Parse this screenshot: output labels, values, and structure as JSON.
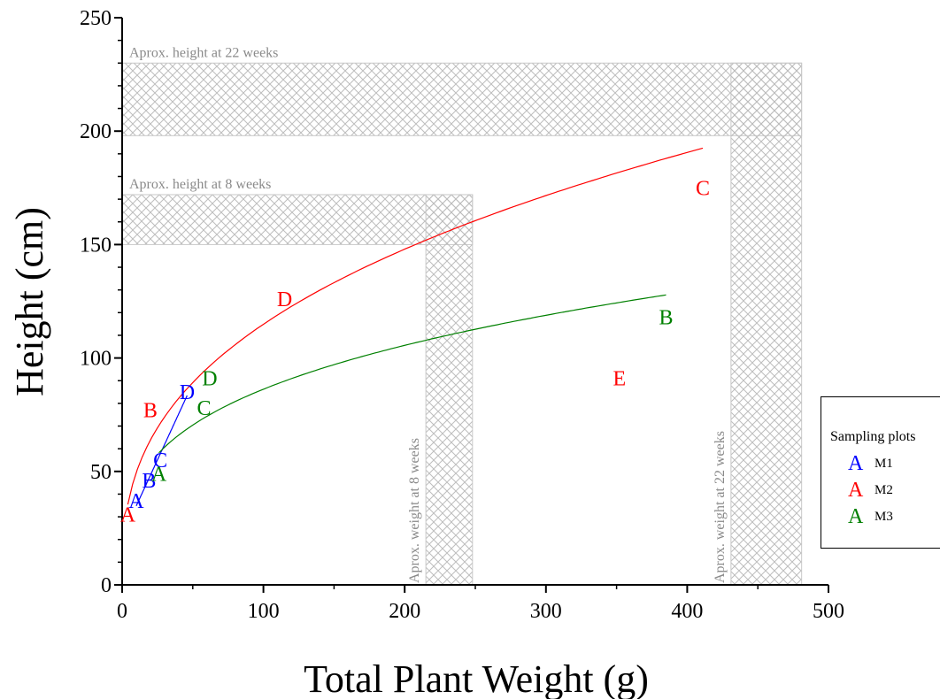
{
  "chart_data": {
    "type": "scatter",
    "xlabel": "Total Plant Weight (g)",
    "ylabel": "Height (cm)",
    "xlim": [
      0,
      500
    ],
    "ylim": [
      0,
      250
    ],
    "x_ticks": [
      0,
      100,
      200,
      300,
      400,
      500
    ],
    "y_ticks": [
      0,
      50,
      100,
      150,
      200,
      250
    ],
    "grid": false,
    "legend": {
      "title": "Sampling plots",
      "placement": "right"
    },
    "series": [
      {
        "name": "M1",
        "color": "#0000ff",
        "points": [
          {
            "label": "A",
            "x": 10,
            "y": 37
          },
          {
            "label": "B",
            "x": 19,
            "y": 46
          },
          {
            "label": "C",
            "x": 27,
            "y": 55
          },
          {
            "label": "D",
            "x": 46,
            "y": 85
          }
        ],
        "fit": "linear"
      },
      {
        "name": "M2",
        "color": "#ff0000",
        "points": [
          {
            "label": "A",
            "x": 4,
            "y": 31
          },
          {
            "label": "B",
            "x": 20,
            "y": 77
          },
          {
            "label": "D",
            "x": 115,
            "y": 126
          },
          {
            "label": "C",
            "x": 411,
            "y": 175
          },
          {
            "label": "E",
            "x": 352,
            "y": 91
          }
        ],
        "fit": "power"
      },
      {
        "name": "M3",
        "color": "#008000",
        "points": [
          {
            "label": "A",
            "x": 26,
            "y": 49
          },
          {
            "label": "C",
            "x": 58,
            "y": 78
          },
          {
            "label": "D",
            "x": 62,
            "y": 91
          },
          {
            "label": "B",
            "x": 385,
            "y": 118
          }
        ],
        "fit": "power"
      }
    ],
    "bands": [
      {
        "label": "Aprox. height at 22 weeks",
        "orientation": "horizontal",
        "x_range": [
          0,
          481
        ],
        "y_range": [
          198,
          230
        ]
      },
      {
        "label": "Aprox. height at 8 weeks",
        "orientation": "horizontal",
        "x_range": [
          0,
          248
        ],
        "y_range": [
          150,
          172
        ]
      },
      {
        "label": "Aprox. weight at 8 weeks",
        "orientation": "vertical",
        "x_range": [
          215,
          248
        ],
        "y_range": [
          0,
          172
        ]
      },
      {
        "label": "Aprox. weight at 22 weeks",
        "orientation": "vertical",
        "x_range": [
          431,
          481
        ],
        "y_range": [
          0,
          230
        ]
      }
    ]
  }
}
